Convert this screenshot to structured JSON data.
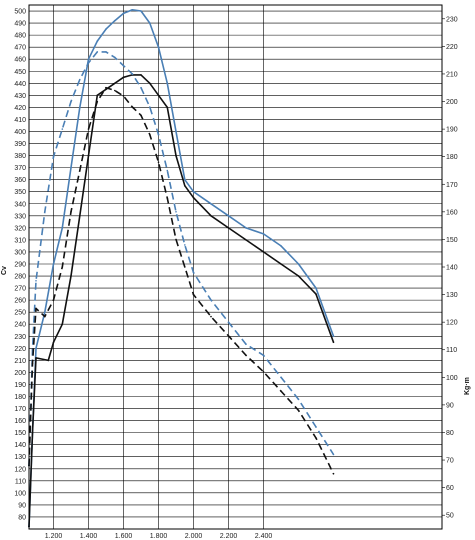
{
  "chart_data": {
    "type": "line",
    "xlabel": "",
    "ylabel_left": "Cv",
    "ylabel_right": "Kg·m",
    "x_range": [
      1060,
      3420
    ],
    "x_ticks": [
      1200,
      1400,
      1600,
      1800,
      2000,
      2200,
      2400
    ],
    "x_tick_labels": [
      "1.200",
      "1.400",
      "1.600",
      "1.800",
      "2.000",
      "2.200",
      "2.400"
    ],
    "y_left_range": [
      70,
      505
    ],
    "y_left_ticks": [
      80,
      90,
      100,
      110,
      120,
      130,
      140,
      150,
      160,
      170,
      180,
      190,
      200,
      210,
      220,
      230,
      240,
      250,
      260,
      270,
      280,
      290,
      300,
      310,
      320,
      330,
      340,
      350,
      360,
      370,
      380,
      390,
      400,
      410,
      420,
      430,
      440,
      450,
      460,
      470,
      480,
      490,
      500
    ],
    "y_right_range": [
      45,
      235
    ],
    "y_right_ticks": [
      50,
      60,
      70,
      80,
      90,
      100,
      110,
      120,
      130,
      140,
      150,
      160,
      170,
      180,
      190,
      200,
      210,
      220,
      230
    ],
    "grid": true,
    "series": [
      {
        "axis": "left",
        "style": "solid",
        "color": "#4a7fb5",
        "points": [
          [
            1060,
            72
          ],
          [
            1080,
            150
          ],
          [
            1100,
            220
          ],
          [
            1150,
            250
          ],
          [
            1200,
            290
          ],
          [
            1250,
            320
          ],
          [
            1300,
            370
          ],
          [
            1350,
            420
          ],
          [
            1400,
            460
          ],
          [
            1450,
            475
          ],
          [
            1500,
            485
          ],
          [
            1550,
            492
          ],
          [
            1600,
            498
          ],
          [
            1650,
            501
          ],
          [
            1700,
            500
          ],
          [
            1750,
            490
          ],
          [
            1800,
            470
          ],
          [
            1850,
            440
          ],
          [
            1900,
            400
          ],
          [
            1950,
            360
          ],
          [
            2000,
            350
          ],
          [
            2100,
            340
          ],
          [
            2200,
            330
          ],
          [
            2300,
            320
          ],
          [
            2400,
            315
          ],
          [
            2500,
            305
          ],
          [
            2600,
            290
          ],
          [
            2700,
            270
          ],
          [
            2800,
            230
          ]
        ]
      },
      {
        "axis": "left",
        "style": "solid",
        "color": "#111111",
        "points": [
          [
            1060,
            72
          ],
          [
            1080,
            150
          ],
          [
            1100,
            212
          ],
          [
            1170,
            210
          ],
          [
            1200,
            225
          ],
          [
            1250,
            240
          ],
          [
            1300,
            280
          ],
          [
            1350,
            330
          ],
          [
            1400,
            380
          ],
          [
            1450,
            430
          ],
          [
            1500,
            435
          ],
          [
            1550,
            440
          ],
          [
            1600,
            445
          ],
          [
            1650,
            447
          ],
          [
            1700,
            447
          ],
          [
            1750,
            440
          ],
          [
            1800,
            430
          ],
          [
            1850,
            420
          ],
          [
            1900,
            380
          ],
          [
            1950,
            355
          ],
          [
            2000,
            345
          ],
          [
            2100,
            330
          ],
          [
            2200,
            320
          ],
          [
            2300,
            310
          ],
          [
            2400,
            300
          ],
          [
            2500,
            290
          ],
          [
            2600,
            280
          ],
          [
            2700,
            265
          ],
          [
            2800,
            225
          ]
        ]
      },
      {
        "axis": "right",
        "style": "dashed",
        "color": "#4a7fb5",
        "points": [
          [
            1060,
            68
          ],
          [
            1080,
            110
          ],
          [
            1100,
            135
          ],
          [
            1150,
            160
          ],
          [
            1200,
            180
          ],
          [
            1250,
            190
          ],
          [
            1300,
            200
          ],
          [
            1350,
            208
          ],
          [
            1400,
            214
          ],
          [
            1450,
            218
          ],
          [
            1500,
            218
          ],
          [
            1550,
            216
          ],
          [
            1600,
            213
          ],
          [
            1650,
            210
          ],
          [
            1700,
            205
          ],
          [
            1750,
            198
          ],
          [
            1800,
            188
          ],
          [
            1850,
            175
          ],
          [
            1900,
            160
          ],
          [
            1950,
            148
          ],
          [
            2000,
            138
          ],
          [
            2100,
            128
          ],
          [
            2200,
            120
          ],
          [
            2300,
            112
          ],
          [
            2400,
            108
          ],
          [
            2500,
            100
          ],
          [
            2600,
            92
          ],
          [
            2700,
            82
          ],
          [
            2800,
            72
          ]
        ]
      },
      {
        "axis": "right",
        "style": "dashed",
        "color": "#111111",
        "points": [
          [
            1060,
            68
          ],
          [
            1080,
            105
          ],
          [
            1100,
            125
          ],
          [
            1150,
            122
          ],
          [
            1200,
            128
          ],
          [
            1250,
            140
          ],
          [
            1300,
            160
          ],
          [
            1350,
            175
          ],
          [
            1400,
            190
          ],
          [
            1450,
            200
          ],
          [
            1500,
            205
          ],
          [
            1550,
            204
          ],
          [
            1600,
            202
          ],
          [
            1650,
            198
          ],
          [
            1700,
            195
          ],
          [
            1750,
            188
          ],
          [
            1800,
            178
          ],
          [
            1850,
            165
          ],
          [
            1900,
            150
          ],
          [
            1950,
            140
          ],
          [
            2000,
            130
          ],
          [
            2100,
            122
          ],
          [
            2200,
            115
          ],
          [
            2300,
            108
          ],
          [
            2400,
            102
          ],
          [
            2500,
            95
          ],
          [
            2600,
            88
          ],
          [
            2700,
            78
          ],
          [
            2800,
            65
          ]
        ]
      }
    ]
  }
}
